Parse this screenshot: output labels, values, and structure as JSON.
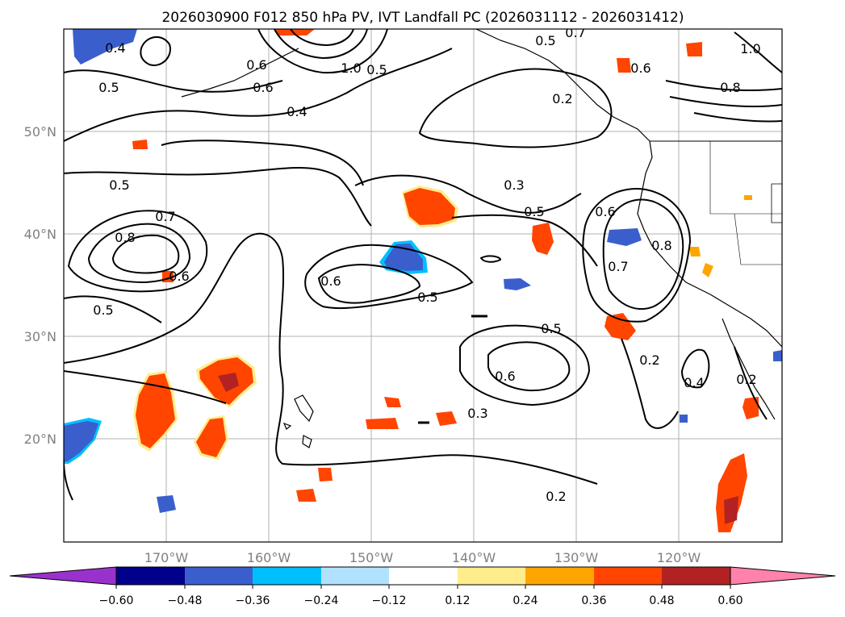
{
  "title": "2026030900 F012 850 hPa PV, IVT Landfall PC (2026031112 - 2026031412)",
  "lon_labels": [
    "170°W",
    "160°W",
    "150°W",
    "140°W",
    "130°W",
    "120°W"
  ],
  "lat_labels": [
    "50°N",
    "40°N",
    "30°N",
    "20°N"
  ],
  "extent": {
    "lon_min": -180,
    "lon_max": -110,
    "lat_min": 10,
    "lat_max": 60
  },
  "contour_labels": [
    "0.5",
    "0.4",
    "0.6",
    "1.0",
    "0.5",
    "0.6",
    "0.4",
    "0.5",
    "0.7",
    "0.8",
    "0.6",
    "0.5",
    "0.3",
    "0.5",
    "0.6",
    "0.7",
    "0.8",
    "0.6",
    "0.5",
    "0.5",
    "0.6",
    "0.3",
    "0.2",
    "0.2",
    "0.4",
    "0.2",
    "0.7",
    "0.8",
    "1.0",
    "0.6",
    "0.5",
    "0.2"
  ],
  "colorbar": {
    "tick_labels": [
      "−0.60",
      "−0.48",
      "−0.36",
      "−0.24",
      "−0.12",
      "0.12",
      "0.24",
      "0.36",
      "0.48",
      "0.60"
    ],
    "colors": [
      "#9932cc",
      "#00008b",
      "#3a5fcd",
      "#00bfff",
      "#b0e2ff",
      "#ffffff",
      "#ffec8b",
      "#ffa500",
      "#ff4500",
      "#b22222",
      "#ff82ab"
    ]
  },
  "shading_colors": {
    "orange_red": "#ff4500",
    "firebrick": "#b22222",
    "orange": "#ffa500",
    "light_yellow": "#ffec8b",
    "royal_blue": "#3a5fcd",
    "deep_sky_blue": "#00bfff",
    "light_blue": "#b0e2ff"
  }
}
